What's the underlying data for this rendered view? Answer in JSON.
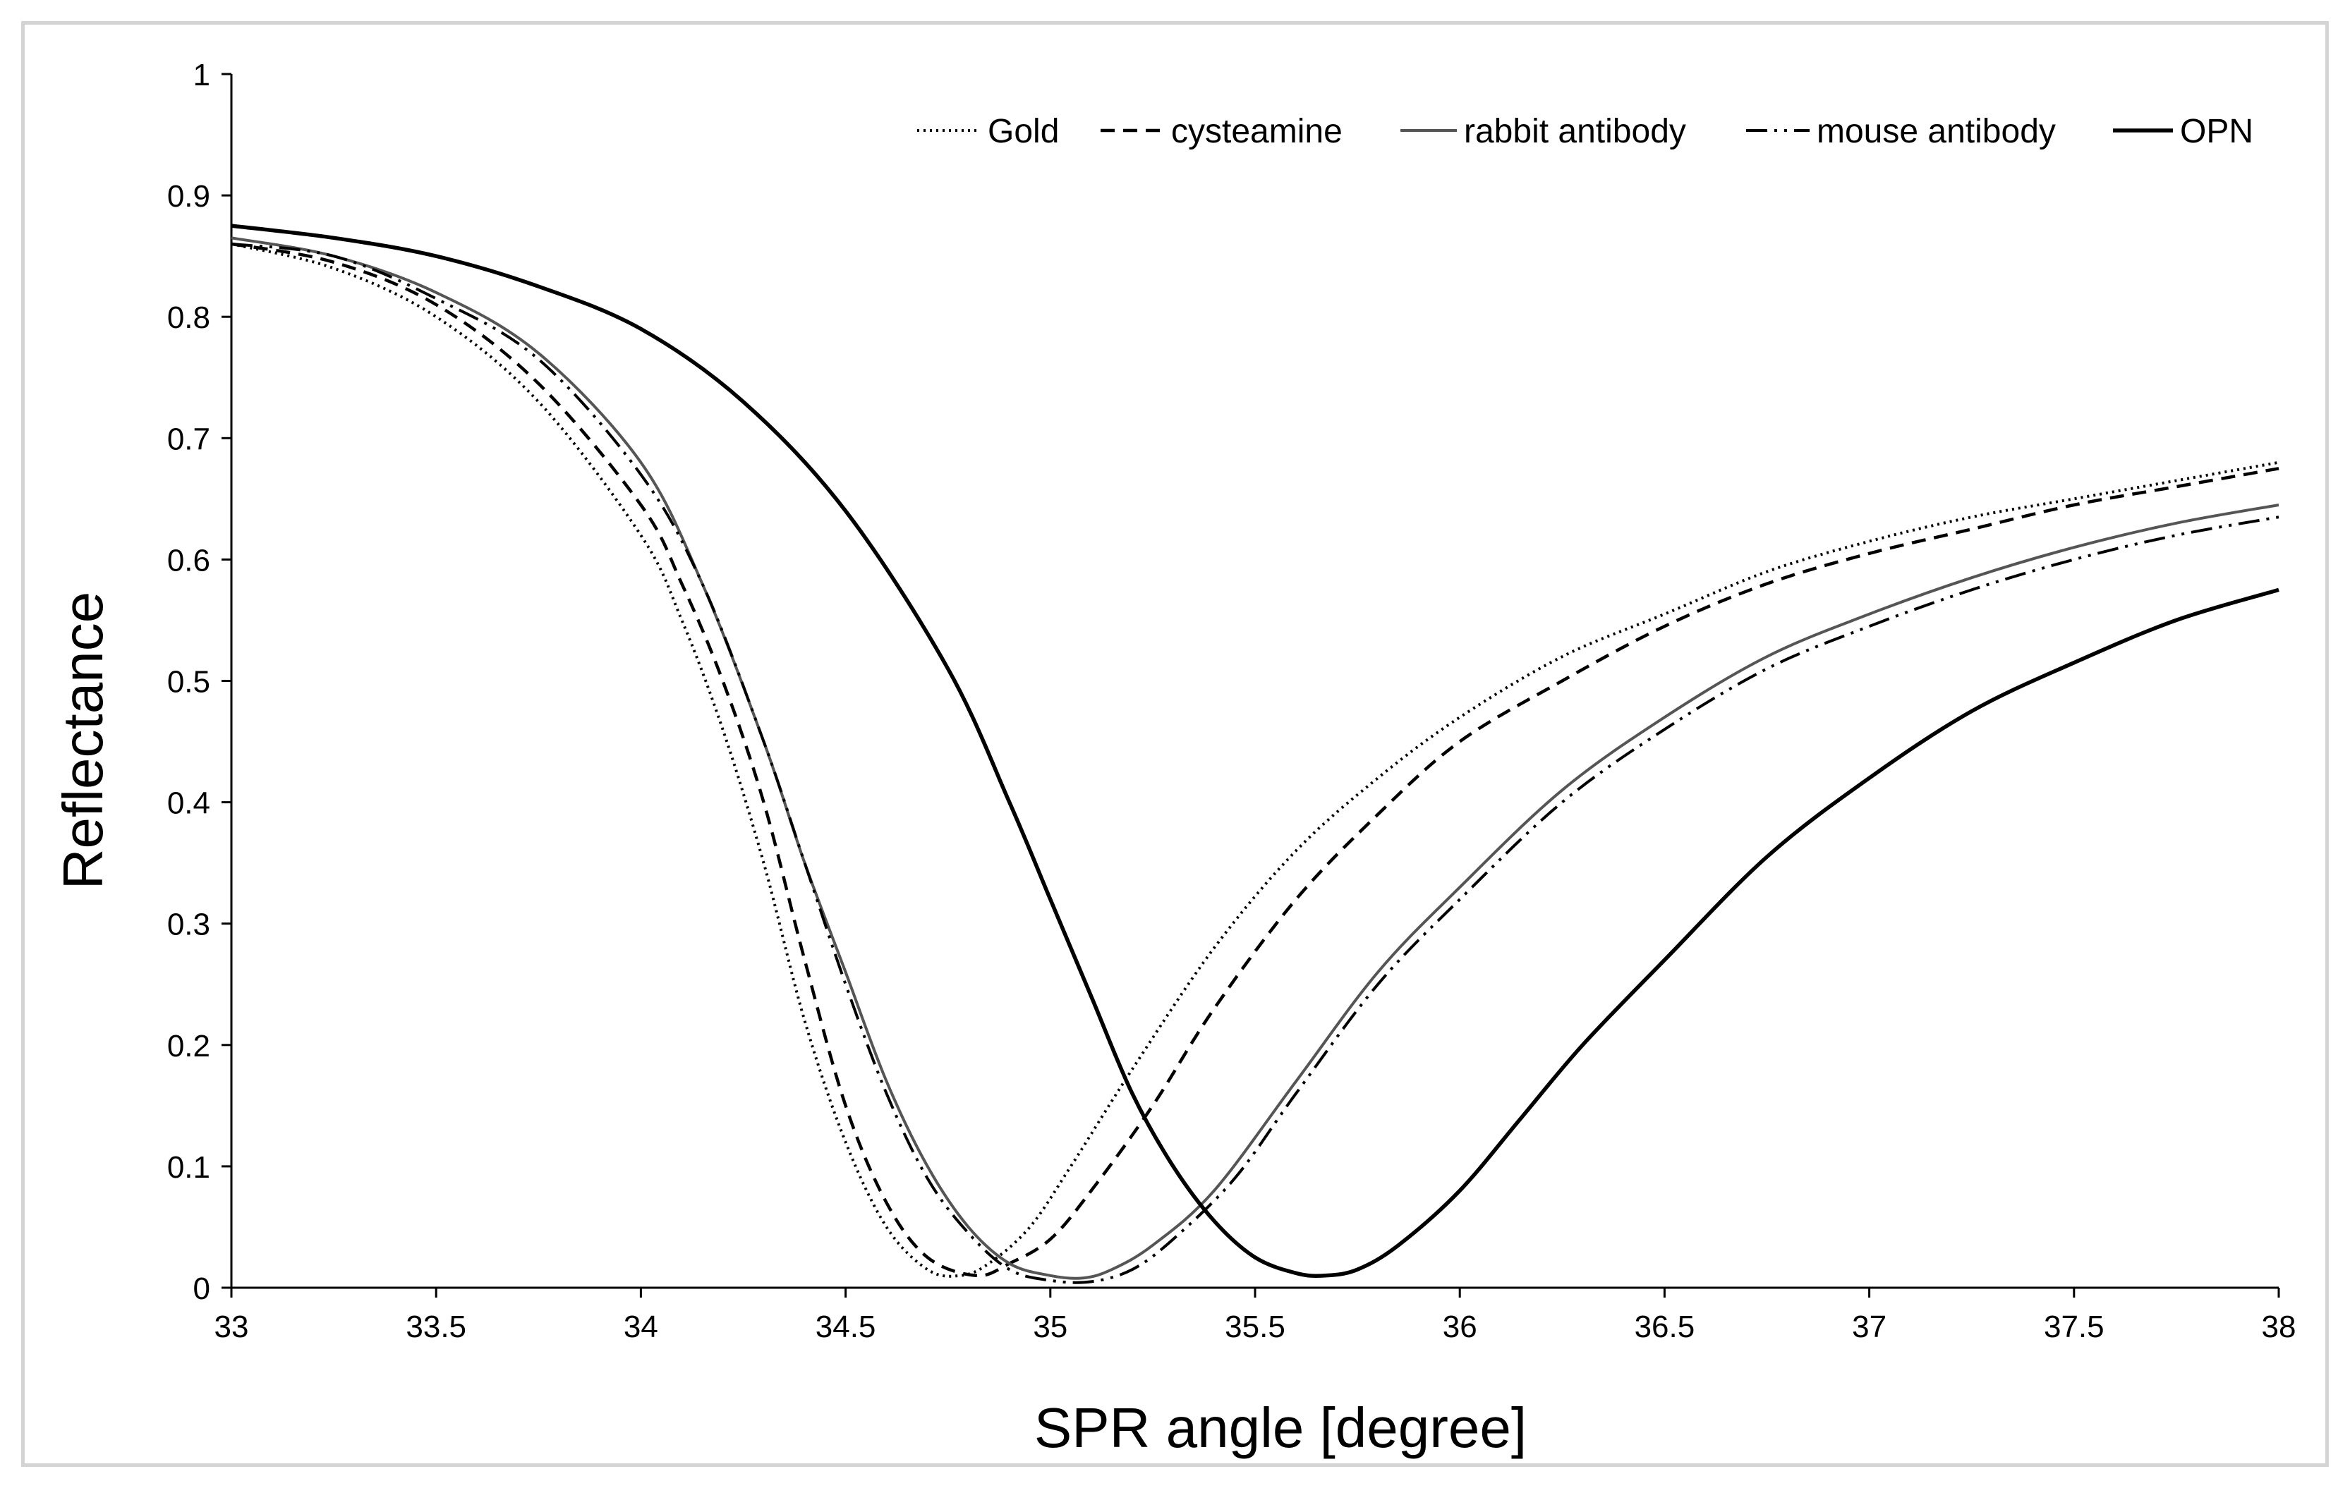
{
  "chart_data": {
    "type": "line",
    "title": "",
    "xlabel": "SPR angle [degree]",
    "ylabel": "Reflectance",
    "xlim": [
      33,
      38
    ],
    "ylim": [
      0,
      1
    ],
    "xticks": [
      "33",
      "33.5",
      "34",
      "34.5",
      "35",
      "35.5",
      "36",
      "36.5",
      "37",
      "37.5",
      "38"
    ],
    "yticks": [
      "0",
      "0.1",
      "0.2",
      "0.3",
      "0.4",
      "0.5",
      "0.6",
      "0.7",
      "0.8",
      "0.9",
      "1"
    ],
    "grid": false,
    "legend_position": "top-right",
    "series": [
      {
        "name": "Gold",
        "dash": "dotted",
        "color": "#000000",
        "x": [
          33.0,
          33.25,
          33.5,
          33.75,
          34.0,
          34.1,
          34.2,
          34.3,
          34.4,
          34.5,
          34.6,
          34.7,
          34.78,
          34.85,
          34.95,
          35.05,
          35.2,
          35.4,
          35.6,
          35.8,
          36.0,
          36.25,
          36.5,
          36.75,
          37.0,
          37.25,
          37.5,
          37.75,
          38.0
        ],
        "y": [
          0.86,
          0.84,
          0.8,
          0.73,
          0.62,
          0.55,
          0.46,
          0.35,
          0.22,
          0.12,
          0.05,
          0.015,
          0.01,
          0.02,
          0.05,
          0.1,
          0.18,
          0.28,
          0.36,
          0.42,
          0.47,
          0.52,
          0.555,
          0.59,
          0.615,
          0.635,
          0.65,
          0.665,
          0.68
        ]
      },
      {
        "name": "cysteamine",
        "dash": "dashed",
        "color": "#000000",
        "x": [
          33.0,
          33.25,
          33.5,
          33.75,
          34.0,
          34.1,
          34.2,
          34.3,
          34.4,
          34.5,
          34.6,
          34.7,
          34.82,
          34.9,
          35.0,
          35.1,
          35.25,
          35.4,
          35.6,
          35.8,
          36.0,
          36.25,
          36.5,
          36.75,
          37.0,
          37.25,
          37.5,
          37.75,
          38.0
        ],
        "y": [
          0.86,
          0.845,
          0.81,
          0.745,
          0.645,
          0.58,
          0.5,
          0.4,
          0.27,
          0.15,
          0.07,
          0.025,
          0.01,
          0.02,
          0.04,
          0.08,
          0.15,
          0.23,
          0.32,
          0.39,
          0.45,
          0.5,
          0.545,
          0.58,
          0.605,
          0.625,
          0.645,
          0.66,
          0.675
        ]
      },
      {
        "name": "rabbit antibody",
        "dash": "solid-gray",
        "color": "#555555",
        "x": [
          33.0,
          33.25,
          33.5,
          33.75,
          34.0,
          34.15,
          34.3,
          34.4,
          34.5,
          34.6,
          34.7,
          34.8,
          34.9,
          35.0,
          35.08,
          35.15,
          35.25,
          35.4,
          35.6,
          35.8,
          36.0,
          36.25,
          36.5,
          36.75,
          37.0,
          37.25,
          37.5,
          37.75,
          38.0
        ],
        "y": [
          0.865,
          0.85,
          0.82,
          0.77,
          0.68,
          0.58,
          0.45,
          0.35,
          0.26,
          0.17,
          0.1,
          0.05,
          0.02,
          0.01,
          0.008,
          0.015,
          0.035,
          0.08,
          0.17,
          0.26,
          0.33,
          0.41,
          0.47,
          0.52,
          0.555,
          0.585,
          0.61,
          0.63,
          0.645
        ]
      },
      {
        "name": "mouse antibody",
        "dash": "dash-dot-dot",
        "color": "#000000",
        "x": [
          33.0,
          33.25,
          33.5,
          33.75,
          34.0,
          34.15,
          34.3,
          34.4,
          34.5,
          34.6,
          34.7,
          34.8,
          34.9,
          35.0,
          35.1,
          35.2,
          35.3,
          35.45,
          35.6,
          35.8,
          36.0,
          36.25,
          36.5,
          36.75,
          37.0,
          37.25,
          37.5,
          37.75,
          38.0
        ],
        "y": [
          0.86,
          0.85,
          0.815,
          0.765,
          0.67,
          0.58,
          0.45,
          0.35,
          0.25,
          0.16,
          0.09,
          0.045,
          0.015,
          0.006,
          0.005,
          0.015,
          0.04,
          0.09,
          0.16,
          0.25,
          0.32,
          0.4,
          0.46,
          0.51,
          0.545,
          0.575,
          0.6,
          0.62,
          0.635
        ]
      },
      {
        "name": "OPN",
        "dash": "solid",
        "color": "#000000",
        "x": [
          33.0,
          33.25,
          33.5,
          33.75,
          34.0,
          34.25,
          34.5,
          34.75,
          34.9,
          35.0,
          35.1,
          35.2,
          35.3,
          35.4,
          35.5,
          35.6,
          35.67,
          35.75,
          35.85,
          36.0,
          36.15,
          36.3,
          36.5,
          36.75,
          37.0,
          37.25,
          37.5,
          37.75,
          38.0
        ],
        "y": [
          0.875,
          0.865,
          0.85,
          0.825,
          0.79,
          0.73,
          0.64,
          0.51,
          0.4,
          0.32,
          0.24,
          0.16,
          0.1,
          0.055,
          0.025,
          0.012,
          0.01,
          0.015,
          0.035,
          0.08,
          0.14,
          0.2,
          0.27,
          0.355,
          0.42,
          0.475,
          0.515,
          0.55,
          0.575
        ]
      }
    ]
  }
}
